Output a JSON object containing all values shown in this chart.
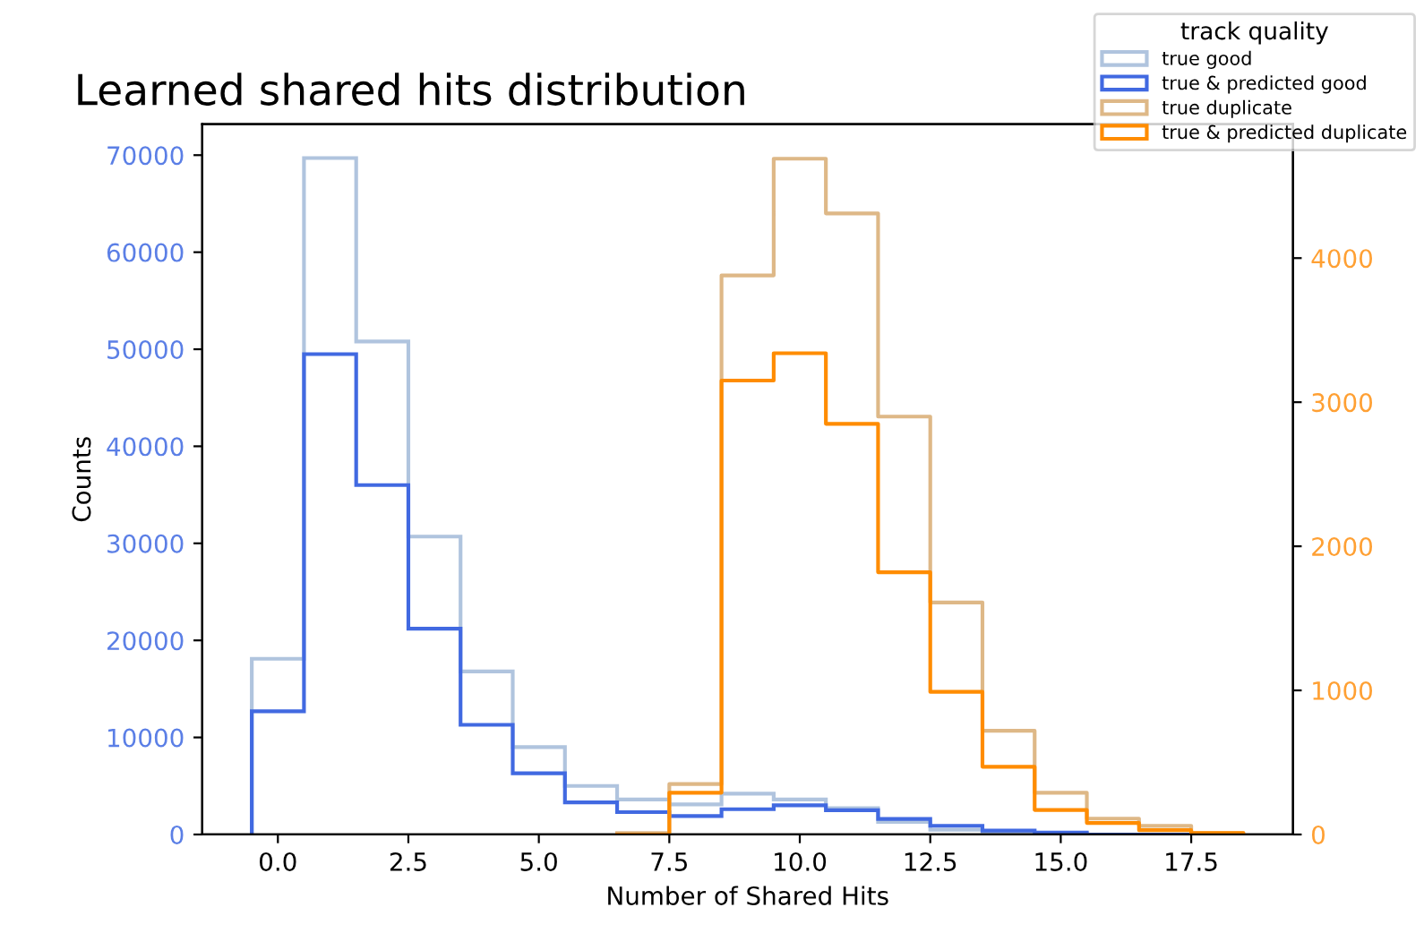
{
  "chart_data": {
    "type": "histogram",
    "title": "Learned shared hits distribution",
    "xlabel": "Number of Shared Hits",
    "ylabel": "Counts",
    "legend_title": "track quality",
    "legend": "top right",
    "bins": [
      -0.5,
      0.5,
      1.5,
      2.5,
      3.5,
      4.5,
      5.5,
      6.5,
      7.5,
      8.5,
      9.5,
      10.5,
      11.5,
      12.5,
      13.5,
      14.5,
      15.5,
      16.5,
      17.5,
      18.5
    ],
    "series": [
      {
        "name": "true good",
        "color": "#b0c4de",
        "values": [
          18100,
          69700,
          50800,
          30700,
          16800,
          9000,
          5000,
          3600,
          3100,
          4200,
          3600,
          2700,
          1300,
          500,
          200,
          100,
          0,
          0,
          0
        ]
      },
      {
        "name": "true & predicted good",
        "color": "#4169e1",
        "values": [
          12700,
          49500,
          36000,
          21200,
          11300,
          6300,
          3300,
          2300,
          1900,
          2600,
          3000,
          2500,
          1600,
          900,
          400,
          200,
          0,
          0,
          0
        ]
      },
      {
        "name": "true duplicate",
        "type": "step",
        "color": "#deb887",
        "axis": "y2",
        "x": [
          6.5,
          7.5,
          8.5,
          9.5,
          10.5,
          11.5,
          12.5,
          13.5,
          14.5,
          15.5,
          16.5,
          17.5,
          18.5
        ],
        "values": [
          10,
          350,
          3880,
          4690,
          4310,
          2900,
          1610,
          720,
          290,
          110,
          60,
          10,
          0
        ]
      },
      {
        "name": "true & predicted duplicate",
        "type": "step",
        "color": "#ff8c00",
        "axis": "y2",
        "x": [
          6.5,
          7.5,
          8.5,
          9.5,
          10.5,
          11.5,
          12.5,
          13.5,
          14.5,
          15.5,
          16.5,
          17.5,
          18.5
        ],
        "values": [
          0,
          290,
          3150,
          3340,
          2850,
          1820,
          990,
          470,
          170,
          80,
          30,
          10,
          0
        ]
      }
    ],
    "xlim": [
      -1.45,
      19.45
    ],
    "xticks": [
      {
        "value": 0,
        "label": "0.0"
      },
      {
        "value": 2.5,
        "label": "2.5"
      },
      {
        "value": 5,
        "label": "5.0"
      },
      {
        "value": 7.5,
        "label": "7.5"
      },
      {
        "value": 10,
        "label": "10.0"
      },
      {
        "value": 12.5,
        "label": "12.5"
      },
      {
        "value": 15,
        "label": "15.0"
      },
      {
        "value": 17.5,
        "label": "17.5"
      }
    ],
    "ylim": [
      0,
      73200
    ],
    "yticks": [
      0,
      10000,
      20000,
      30000,
      40000,
      50000,
      60000,
      70000
    ],
    "y2lim": [
      0,
      4930
    ],
    "y2ticks": [
      0,
      1000,
      2000,
      3000,
      4000
    ]
  }
}
